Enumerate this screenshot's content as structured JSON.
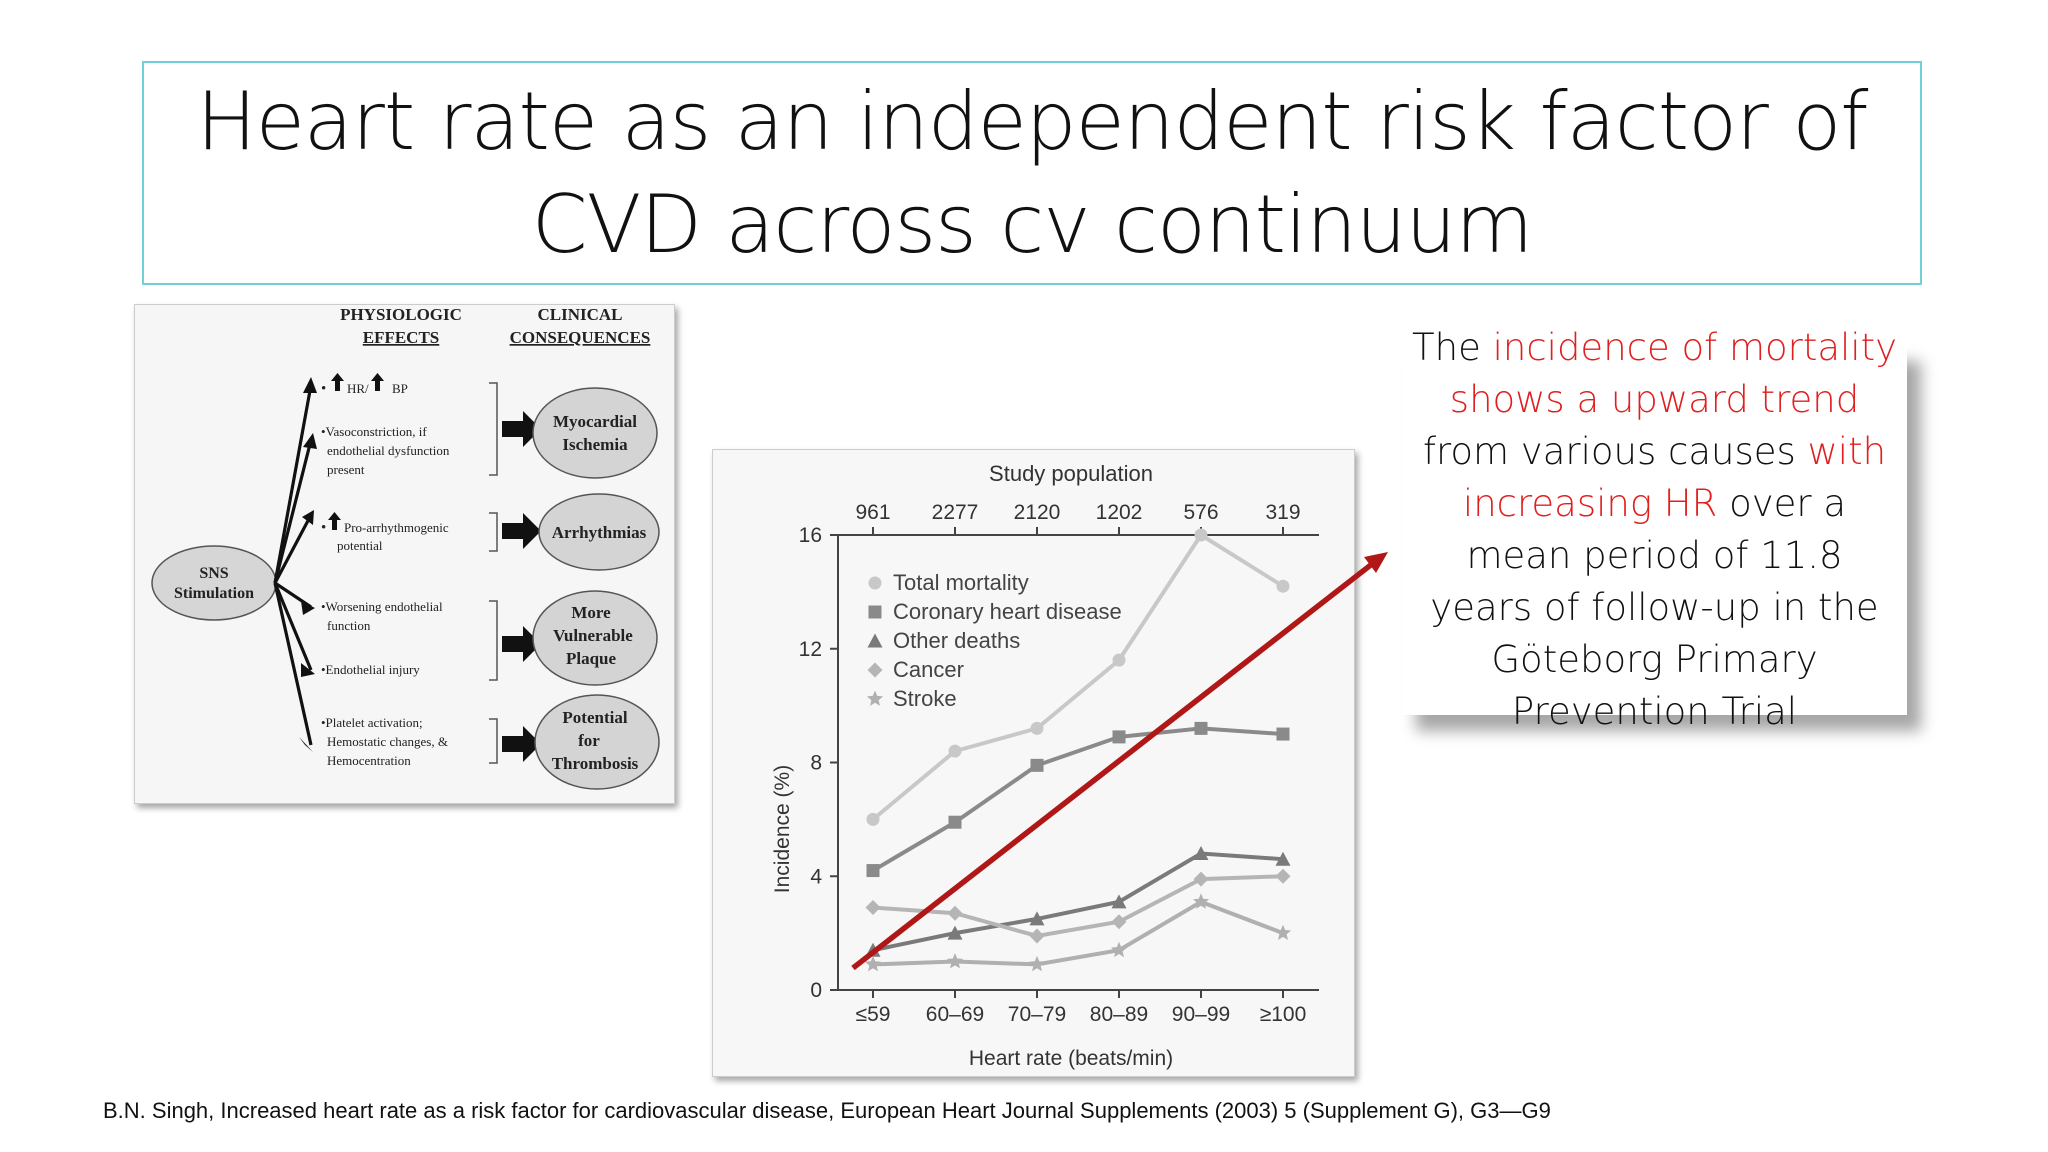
{
  "slide": {
    "title_line1": "Heart rate as an independent risk factor of",
    "title_line2": "CVD across cv continuum",
    "accent_color": "#e02020",
    "trend_arrow_color": "#b01818",
    "citation": "B.N. Singh, Increased heart rate as a risk factor for cardiovascular disease, European Heart Journal Supplements (2003) 5 (Supplement G), G3—G9"
  },
  "callout": {
    "p1": "The ",
    "p2": "incidence of mortality shows a upward trend",
    "p3": " from various causes ",
    "p4": "with increasing HR",
    "p5": " over a mean period of 11.8 years of follow-up in the Göteborg Primary Prevention Trial"
  },
  "diagram": {
    "header_left_top": "PHYSIOLOGIC",
    "header_left": "EFFECTS",
    "header_right_top": "CLINICAL",
    "header_right": "CONSEQUENCES",
    "source_line1": "SNS",
    "source_line2": "Stimulation",
    "effects": {
      "e1a": "HR/",
      "e1b": "BP",
      "e2a": "•Vasoconstriction, if",
      "e2b": "endothelial dysfunction",
      "e2c": "present",
      "e3a": "Pro-arrhythmogenic",
      "e3b": "potential",
      "e4a": "•Worsening endothelial",
      "e4b": "function",
      "e5": "•Endothelial injury",
      "e6a": "•Platelet activation;",
      "e6b": "Hemostatic changes, &",
      "e6c": "Hemocentration"
    },
    "consequences": {
      "c1a": "Myocardial",
      "c1b": "Ischemia",
      "c2": "Arrhythmias",
      "c3a": "More",
      "c3b": "Vulnerable",
      "c3c": "Plaque",
      "c4a": "Potential",
      "c4b": "for",
      "c4c": "Thrombosis"
    }
  },
  "chart_data": {
    "type": "line",
    "top_axis_title": "Study population",
    "top_axis_labels": [
      "961",
      "2277",
      "2120",
      "1202",
      "576",
      "319"
    ],
    "categories": [
      "≤59",
      "60–69",
      "70–79",
      "80–89",
      "90–99",
      "≥100"
    ],
    "xlabel": "Heart rate (beats/min)",
    "ylabel": "Incidence (%)",
    "ylim": [
      0,
      16
    ],
    "yticks": [
      "0",
      "4",
      "8",
      "12",
      "16"
    ],
    "series": [
      {
        "name": "Total mortality",
        "marker": "circle",
        "color": "#c8c8c8",
        "values": [
          6.0,
          8.4,
          9.2,
          11.6,
          16.0,
          14.2
        ]
      },
      {
        "name": "Coronary heart disease",
        "marker": "square",
        "color": "#8a8a8a",
        "values": [
          4.2,
          5.9,
          7.9,
          8.9,
          9.2,
          9.0
        ]
      },
      {
        "name": "Other deaths",
        "marker": "triangle",
        "color": "#7a7a7a",
        "values": [
          1.4,
          2.0,
          2.5,
          3.1,
          4.8,
          4.6
        ]
      },
      {
        "name": "Cancer",
        "marker": "diamond",
        "color": "#b5b5b5",
        "values": [
          2.9,
          2.7,
          1.9,
          2.4,
          3.9,
          4.0
        ]
      },
      {
        "name": "Stroke",
        "marker": "star",
        "color": "#b0b0b0",
        "values": [
          0.9,
          1.0,
          0.9,
          1.4,
          3.1,
          2.0
        ]
      }
    ]
  }
}
